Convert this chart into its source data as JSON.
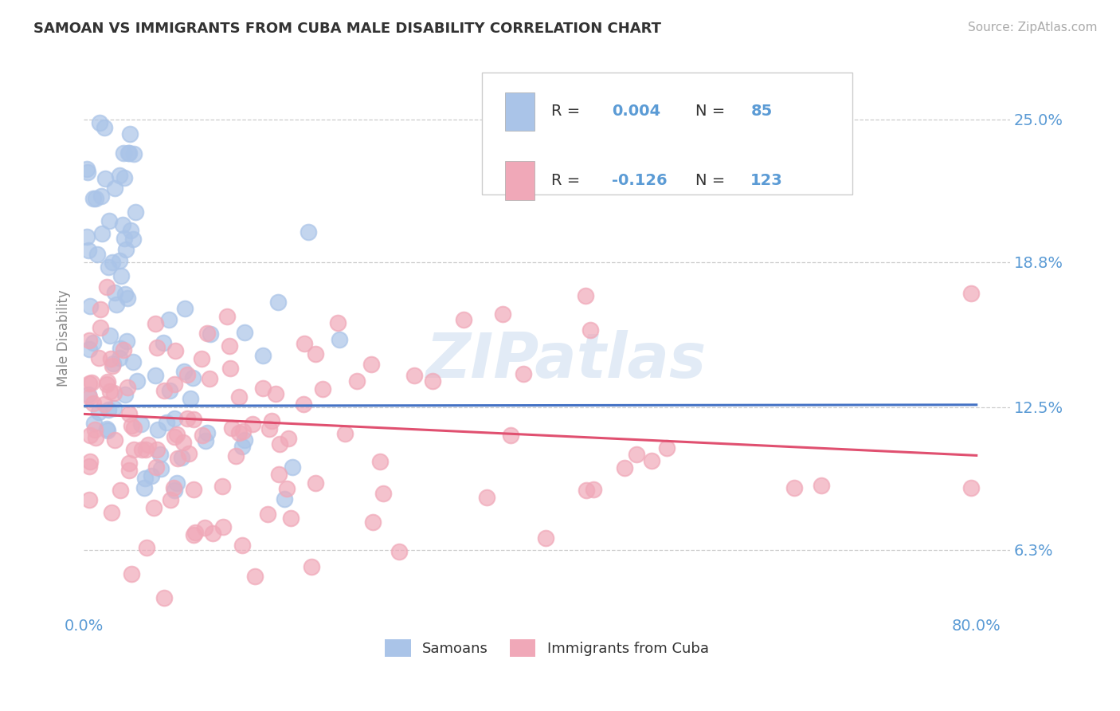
{
  "title": "SAMOAN VS IMMIGRANTS FROM CUBA MALE DISABILITY CORRELATION CHART",
  "source": "Source: ZipAtlas.com",
  "ylabel_label": "Male Disability",
  "xlim": [
    0.0,
    83.0
  ],
  "ylim": [
    3.5,
    27.5
  ],
  "blue_color": "#aac4e8",
  "pink_color": "#f0a8b8",
  "blue_line_color": "#4472c4",
  "pink_line_color": "#e05070",
  "legend_label1": "Samoans",
  "legend_label2": "Immigrants from Cuba",
  "watermark": "ZIPatlas",
  "title_color": "#333333",
  "axis_label_color": "#5b9bd5",
  "grid_color": "#cccccc",
  "legend_box_color": "#dddddd",
  "text_dark": "#333333",
  "ytick_vals": [
    6.3,
    12.5,
    18.8,
    25.0
  ],
  "xtick_vals": [
    0.0,
    80.0
  ],
  "blue_trend_start_y": 12.55,
  "blue_trend_end_y": 12.6,
  "pink_trend_start_y": 12.2,
  "pink_trend_end_y": 10.4
}
